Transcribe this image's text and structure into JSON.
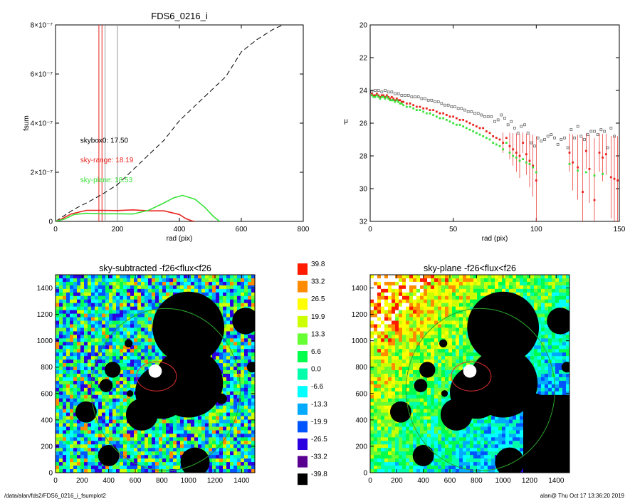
{
  "footer": {
    "path": "/data/alan/fds2/FDS6_0216_i_fsumplot2",
    "stamp": "alan@  Thu Oct 17 13:36:20 2019"
  },
  "colors": {
    "black": "#000000",
    "red": "#e8241f",
    "green": "#39e239",
    "gray": "#999999",
    "ellipse_red": "#e03030",
    "ellipse_green": "#2aa12a",
    "blue_dark": "#18309a"
  },
  "colorbar": {
    "labels": [
      "39.8",
      "33.2",
      "26.5",
      "19.9",
      "13.3",
      "6.6",
      "0.0",
      "-6.6",
      "-13.3",
      "-19.9",
      "-26.5",
      "-33.2",
      "-39.8"
    ],
    "colors": [
      "#ff1a00",
      "#ff8c00",
      "#ffff00",
      "#ccff00",
      "#66ff33",
      "#00ff4c",
      "#00ffaa",
      "#00ffff",
      "#00aaff",
      "#0055ff",
      "#2a00e0",
      "#5a0090",
      "#000000"
    ]
  },
  "chart_data": [
    {
      "type": "line",
      "title": "FDS6_0216_i",
      "xlabel": "rad (pix)",
      "ylabel": "fsum",
      "xlim": [
        0,
        800
      ],
      "ylim": [
        0,
        8e-07
      ],
      "xticks": [
        0,
        200,
        400,
        600,
        800
      ],
      "yticks": [
        0,
        2e-07,
        4e-07,
        6e-07,
        8e-07
      ],
      "ytick_labels": [
        "0",
        "2×10⁻⁷",
        "4×10⁻⁷",
        "6×10⁻⁷",
        "8×10⁻⁷"
      ],
      "vlines": [
        {
          "x": 150,
          "color": "#e8241f"
        },
        {
          "x": 140,
          "color": "#e8241f"
        },
        {
          "x": 160,
          "color": "#999999"
        },
        {
          "x": 200,
          "color": "#999999"
        }
      ],
      "annotations": [
        {
          "text": "skybox0: 17.50",
          "color": "#000000",
          "x": 80,
          "y": 3.2e-07
        },
        {
          "text": "sky-range: 18.19",
          "color": "#e8241f",
          "x": 80,
          "y": 2.4e-07
        },
        {
          "text": "sky-plane: 18.53",
          "color": "#39e239",
          "x": 80,
          "y": 1.6e-07
        }
      ],
      "series": [
        {
          "style": "dashed",
          "color": "#000000",
          "x": [
            0,
            30,
            60,
            100,
            150,
            200,
            250,
            300,
            350,
            400,
            450,
            500,
            550,
            600,
            650,
            700,
            750
          ],
          "y": [
            0,
            2.5e-08,
            5e-08,
            7.5e-08,
            1.1e-07,
            1.5e-07,
            2.1e-07,
            2.7e-07,
            3.3e-07,
            4.1e-07,
            4.7e-07,
            5.3e-07,
            5.9e-07,
            6.9e-07,
            7.4e-07,
            7.8e-07,
            8.1e-07
          ]
        },
        {
          "style": "solid",
          "color": "#e8241f",
          "x": [
            0,
            20,
            50,
            100,
            150,
            200,
            250,
            300,
            350,
            400,
            420,
            440,
            450
          ],
          "y": [
            0,
            1e-08,
            3e-08,
            4.5e-08,
            4.5e-08,
            4.4e-08,
            4.7e-08,
            4.3e-08,
            4.3e-08,
            2.8e-08,
            1.2e-08,
            2e-09,
            0
          ]
        },
        {
          "style": "solid",
          "color": "#39e239",
          "x": [
            0,
            30,
            60,
            100,
            150,
            200,
            250,
            300,
            350,
            380,
            410,
            450,
            480,
            510,
            530
          ],
          "y": [
            0,
            1e-08,
            2.8e-08,
            3.3e-08,
            3.1e-08,
            3.1e-08,
            3e-08,
            4.5e-08,
            7.5e-08,
            9.5e-08,
            1.06e-07,
            9e-08,
            6e-08,
            2e-08,
            0
          ]
        }
      ]
    },
    {
      "type": "scatter",
      "title": "",
      "xlabel": "rad (pix)",
      "ylabel": "μ",
      "xlim": [
        0,
        150
      ],
      "ylim": [
        32,
        20
      ],
      "xticks": [
        0,
        50,
        100,
        150
      ],
      "yticks": [
        20,
        22,
        24,
        26,
        28,
        30,
        32
      ],
      "series": [
        {
          "color": "#555555",
          "marker": "open-square",
          "x": [
            1,
            3,
            5,
            7,
            9,
            11,
            13,
            15,
            17,
            19,
            21,
            23,
            25,
            27,
            29,
            31,
            33,
            35,
            37,
            39,
            41,
            43,
            45,
            47,
            49,
            51,
            53,
            55,
            57,
            59,
            61,
            63,
            65,
            67,
            69,
            71,
            73,
            75,
            77,
            79,
            81,
            83,
            85,
            87,
            89,
            91,
            93,
            95,
            97,
            99,
            101,
            103,
            105,
            107,
            109,
            111,
            113,
            115,
            117,
            119,
            121,
            123,
            125,
            127,
            129,
            131,
            133,
            135,
            137,
            139,
            141,
            143,
            145,
            147
          ],
          "y": [
            24.1,
            24.0,
            24.0,
            24.1,
            24.0,
            24.1,
            24.1,
            24.2,
            24.2,
            24.3,
            24.3,
            24.3,
            24.4,
            24.4,
            24.4,
            24.5,
            24.5,
            24.6,
            24.6,
            24.7,
            24.7,
            24.8,
            24.9,
            24.9,
            25.0,
            25.0,
            25.1,
            25.1,
            25.2,
            25.3,
            25.3,
            25.4,
            25.4,
            25.5,
            25.6,
            25.6,
            25.6,
            25.9,
            25.8,
            25.5,
            25.7,
            26.1,
            25.9,
            26.3,
            26.6,
            26.2,
            26.1,
            26.6,
            27.2,
            27.4,
            26.9,
            27.1,
            27.0,
            26.8,
            26.7,
            26.9,
            27.3,
            27.0,
            26.9,
            27.5,
            26.4,
            26.9,
            26.2,
            26.8,
            27.0,
            26.7,
            26.5,
            26.5,
            26.7,
            26.4,
            26.5,
            27.5,
            26.3,
            26.8
          ]
        },
        {
          "color": "#e8241f",
          "marker": "filled-square",
          "x": [
            1,
            2,
            3,
            4,
            5,
            6,
            7,
            8,
            9,
            10,
            11,
            12,
            13,
            14,
            15,
            16,
            17,
            18,
            19,
            20,
            22,
            24,
            26,
            28,
            30,
            32,
            34,
            36,
            38,
            40,
            42,
            44,
            46,
            48,
            50,
            52,
            54,
            56,
            58,
            60,
            62,
            64,
            66,
            68,
            70,
            72,
            74,
            76,
            78,
            80,
            82,
            84,
            86,
            88,
            90,
            92,
            94,
            96,
            98,
            100,
            120,
            122,
            125,
            128,
            130,
            132,
            135,
            138,
            140,
            142,
            145,
            147,
            149
          ],
          "y": [
            24.2,
            24.3,
            24.3,
            24.2,
            24.3,
            24.4,
            24.3,
            24.3,
            24.4,
            24.3,
            24.4,
            24.5,
            24.4,
            24.5,
            24.6,
            24.5,
            24.6,
            24.6,
            24.7,
            24.7,
            24.8,
            24.8,
            24.9,
            25.0,
            25.0,
            25.1,
            25.1,
            25.2,
            25.2,
            25.3,
            25.4,
            25.4,
            25.5,
            25.6,
            25.6,
            25.7,
            25.8,
            25.8,
            25.9,
            26.0,
            26.1,
            26.2,
            26.3,
            26.3,
            26.5,
            26.6,
            26.8,
            26.9,
            27.0,
            27.2,
            26.9,
            27.4,
            27.6,
            27.8,
            28.0,
            27.2,
            27.9,
            28.3,
            28.6,
            29.5,
            27.8,
            28.4,
            28.7,
            30.2,
            27.7,
            28.8,
            30.7,
            27.8,
            28.1,
            27.9,
            29.3,
            29.4,
            29.5
          ]
        },
        {
          "color": "#39e239",
          "marker": "filled-square",
          "x": [
            1,
            2,
            3,
            4,
            5,
            6,
            7,
            8,
            9,
            10,
            11,
            12,
            13,
            14,
            15,
            16,
            17,
            18,
            19,
            20,
            22,
            24,
            26,
            28,
            30,
            32,
            34,
            36,
            38,
            40,
            42,
            44,
            46,
            48,
            50,
            52,
            54,
            56,
            58,
            60,
            62,
            64,
            66,
            68,
            70,
            72,
            74,
            76,
            78,
            80,
            82,
            84,
            86,
            88,
            90,
            92,
            94,
            96,
            98,
            100,
            120,
            125,
            130,
            135,
            140
          ],
          "y": [
            24.3,
            24.4,
            24.4,
            24.3,
            24.4,
            24.5,
            24.4,
            24.4,
            24.5,
            24.4,
            24.5,
            24.6,
            24.6,
            24.6,
            24.7,
            24.6,
            24.7,
            24.8,
            24.8,
            24.9,
            25.0,
            25.0,
            25.1,
            25.2,
            25.2,
            25.3,
            25.4,
            25.4,
            25.5,
            25.6,
            25.7,
            25.7,
            25.8,
            25.9,
            26.0,
            26.1,
            26.1,
            26.2,
            26.3,
            26.4,
            26.5,
            26.6,
            26.7,
            26.8,
            26.9,
            27.0,
            27.2,
            27.3,
            27.4,
            27.6,
            27.2,
            27.8,
            28.0,
            28.1,
            28.3,
            28.2,
            28.4,
            28.5,
            28.7,
            29.0,
            28.5,
            28.9,
            29.0,
            29.2,
            29.1
          ]
        }
      ]
    },
    {
      "type": "heatmap",
      "title": "sky-subtracted -f26<flux<f26",
      "xlim": [
        0,
        1500
      ],
      "ylim": [
        0,
        1500
      ],
      "xticks": [
        0,
        200,
        400,
        600,
        800,
        1000,
        1200,
        1400
      ],
      "yticks": [
        0,
        200,
        400,
        600,
        800,
        1000,
        1200,
        1400
      ]
    },
    {
      "type": "heatmap",
      "title": "sky-plane -f26<flux<f26",
      "xlim": [
        0,
        1500
      ],
      "ylim": [
        0,
        1500
      ],
      "xticks": [
        0,
        200,
        400,
        600,
        800,
        1000,
        1200,
        1400
      ],
      "yticks": [
        0,
        200,
        400,
        600,
        800,
        1000,
        1200,
        1400
      ]
    }
  ]
}
